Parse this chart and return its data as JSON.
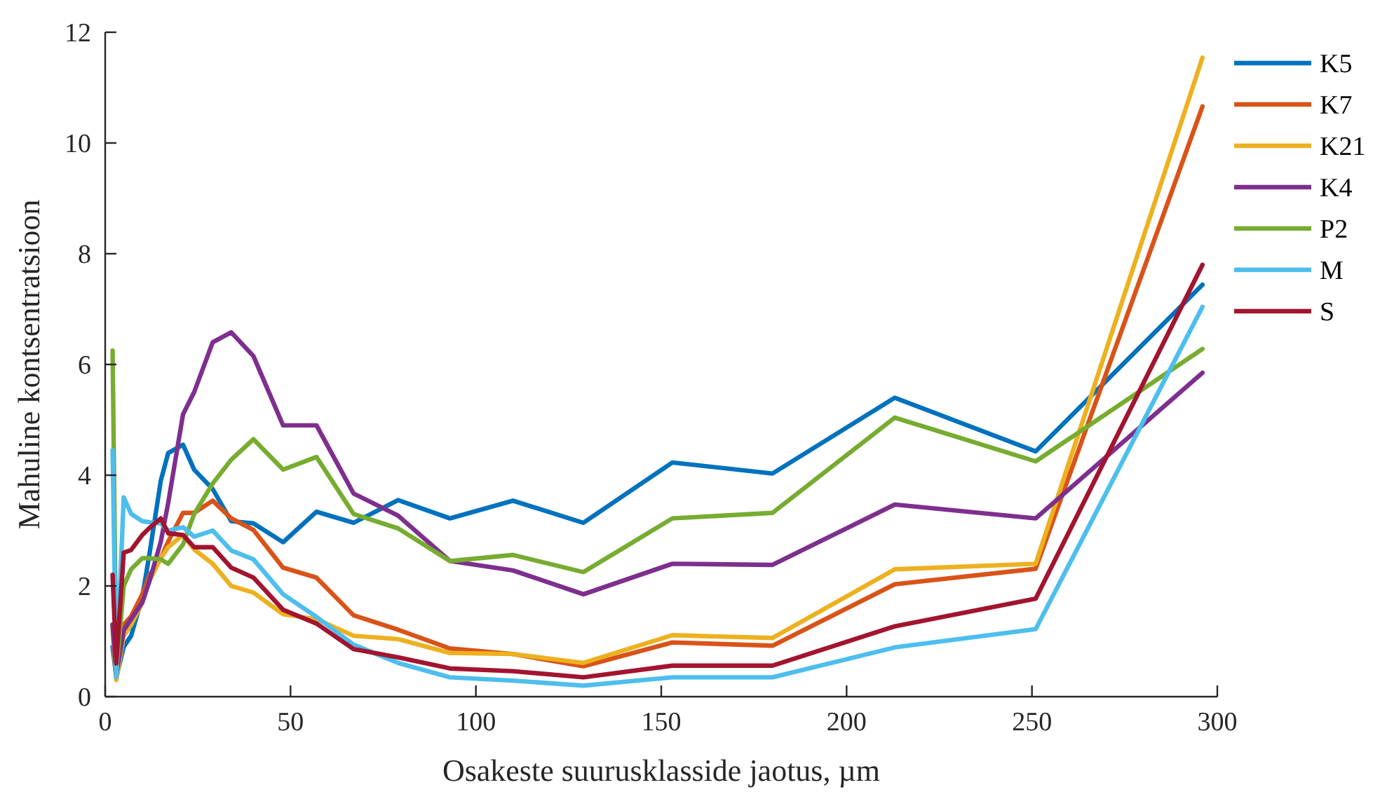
{
  "chart_data": {
    "type": "line",
    "xlabel": "Osakeste suurusklasside jaotus, µm",
    "ylabel": "Mahuline kontsentratsioon",
    "x": [
      2,
      3,
      5,
      7,
      10,
      12,
      15,
      17,
      21,
      24,
      29,
      34,
      40,
      48,
      57,
      67,
      79,
      93,
      110,
      129,
      153,
      180,
      213,
      251,
      296
    ],
    "xlim": [
      0,
      300
    ],
    "xticks": [
      0,
      50,
      100,
      150,
      200,
      250,
      300
    ],
    "ylim": [
      0,
      12
    ],
    "yticks": [
      0,
      2,
      4,
      6,
      8,
      10,
      12
    ],
    "grid": false,
    "legend": "top right",
    "line_style": "solid",
    "marker": "none",
    "series": [
      {
        "name": "K5",
        "color": "#0072bd",
        "values": [
          0.9,
          0.35,
          0.9,
          1.1,
          1.8,
          2.6,
          3.9,
          4.4,
          4.55,
          4.1,
          3.75,
          3.17,
          3.13,
          2.79,
          3.34,
          3.14,
          3.55,
          3.22,
          3.54,
          3.14,
          4.23,
          4.03,
          5.4,
          4.43,
          7.44
        ]
      },
      {
        "name": "K7",
        "color": "#d95319",
        "values": [
          1.3,
          0.35,
          1.3,
          1.45,
          1.85,
          2.2,
          2.5,
          2.8,
          3.32,
          3.32,
          3.54,
          3.22,
          3.01,
          2.33,
          2.15,
          1.47,
          1.21,
          0.87,
          0.77,
          0.55,
          0.98,
          0.92,
          2.03,
          2.31,
          10.66
        ]
      },
      {
        "name": "K21",
        "color": "#edb120",
        "values": [
          1.2,
          0.3,
          1.1,
          1.3,
          1.7,
          2.1,
          2.5,
          2.7,
          2.92,
          2.66,
          2.4,
          2.0,
          1.88,
          1.49,
          1.4,
          1.1,
          1.04,
          0.79,
          0.77,
          0.61,
          1.11,
          1.06,
          2.3,
          2.4,
          11.54
        ]
      },
      {
        "name": "K4",
        "color": "#7e2f8e",
        "values": [
          1.3,
          0.4,
          1.2,
          1.4,
          1.7,
          2.1,
          2.8,
          3.5,
          5.1,
          5.5,
          6.4,
          6.58,
          6.15,
          4.9,
          4.9,
          3.67,
          3.27,
          2.45,
          2.28,
          1.85,
          2.4,
          2.38,
          3.47,
          3.22,
          5.85
        ]
      },
      {
        "name": "P2",
        "color": "#77ac30",
        "values": [
          6.25,
          0.45,
          2.0,
          2.3,
          2.5,
          2.5,
          2.48,
          2.4,
          2.75,
          3.3,
          3.85,
          4.28,
          4.65,
          4.1,
          4.33,
          3.3,
          3.04,
          2.45,
          2.56,
          2.25,
          3.22,
          3.32,
          5.04,
          4.25,
          6.28
        ]
      },
      {
        "name": "M",
        "color": "#4dbeee",
        "values": [
          4.45,
          0.35,
          3.6,
          3.3,
          3.17,
          3.15,
          3.13,
          3.0,
          3.06,
          2.89,
          3.0,
          2.64,
          2.48,
          1.85,
          1.44,
          0.94,
          0.61,
          0.35,
          0.29,
          0.2,
          0.35,
          0.35,
          0.89,
          1.22,
          7.04
        ]
      },
      {
        "name": "S",
        "color": "#a2142f",
        "values": [
          2.2,
          0.6,
          2.6,
          2.65,
          2.92,
          3.05,
          3.22,
          2.95,
          2.92,
          2.7,
          2.7,
          2.33,
          2.15,
          1.57,
          1.32,
          0.86,
          0.71,
          0.51,
          0.46,
          0.35,
          0.56,
          0.56,
          1.27,
          1.77,
          7.8
        ]
      }
    ]
  }
}
